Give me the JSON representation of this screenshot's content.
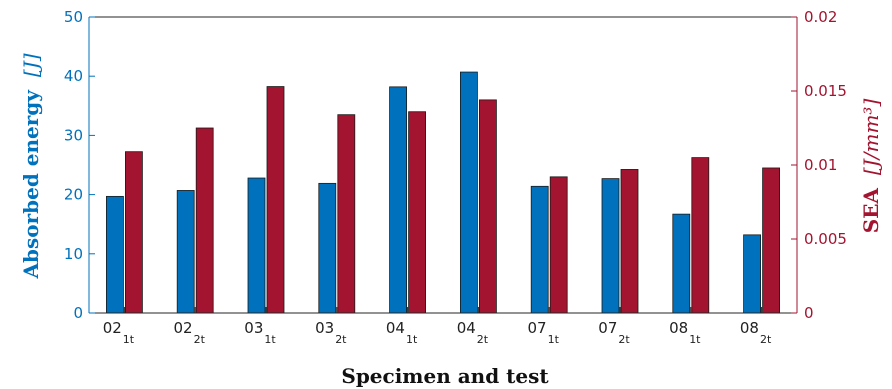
{
  "chart_data": {
    "type": "bar",
    "categories": [
      {
        "base": "02",
        "sub": "1t"
      },
      {
        "base": "02",
        "sub": "2t"
      },
      {
        "base": "03",
        "sub": "1t"
      },
      {
        "base": "03",
        "sub": "2t"
      },
      {
        "base": "04",
        "sub": "1t"
      },
      {
        "base": "04",
        "sub": "2t"
      },
      {
        "base": "07",
        "sub": "1t"
      },
      {
        "base": "07",
        "sub": "2t"
      },
      {
        "base": "08",
        "sub": "1t"
      },
      {
        "base": "08",
        "sub": "2t"
      }
    ],
    "series": [
      {
        "axis": "left",
        "color": "#0072BD",
        "values": [
          19.7,
          20.7,
          22.8,
          21.9,
          38.2,
          40.7,
          21.4,
          22.7,
          16.7,
          13.2
        ]
      },
      {
        "axis": "right",
        "color": "#A2142F",
        "values": [
          0.0109,
          0.0125,
          0.0153,
          0.0134,
          0.0136,
          0.0144,
          0.0092,
          0.0097,
          0.0105,
          0.0098
        ]
      }
    ],
    "xlabel": "Specimen and test",
    "ylabel_left": {
      "text": "Absorbed energy",
      "unit": "[J]"
    },
    "ylabel_right": {
      "text": "SEA",
      "unit": "[J/mm³]"
    },
    "ylim_left": [
      0,
      50
    ],
    "ylim_right": [
      0,
      0.02
    ],
    "yticks_left": [
      "0",
      "10",
      "20",
      "30",
      "40",
      "50"
    ],
    "yticks_right": [
      "0",
      "0.005",
      "0.01",
      "0.015",
      "0.02"
    ],
    "grid": false,
    "legend": "none",
    "colors": {
      "left_axis": "#0072BD",
      "right_axis": "#A2142F",
      "frame": "#262626"
    }
  }
}
